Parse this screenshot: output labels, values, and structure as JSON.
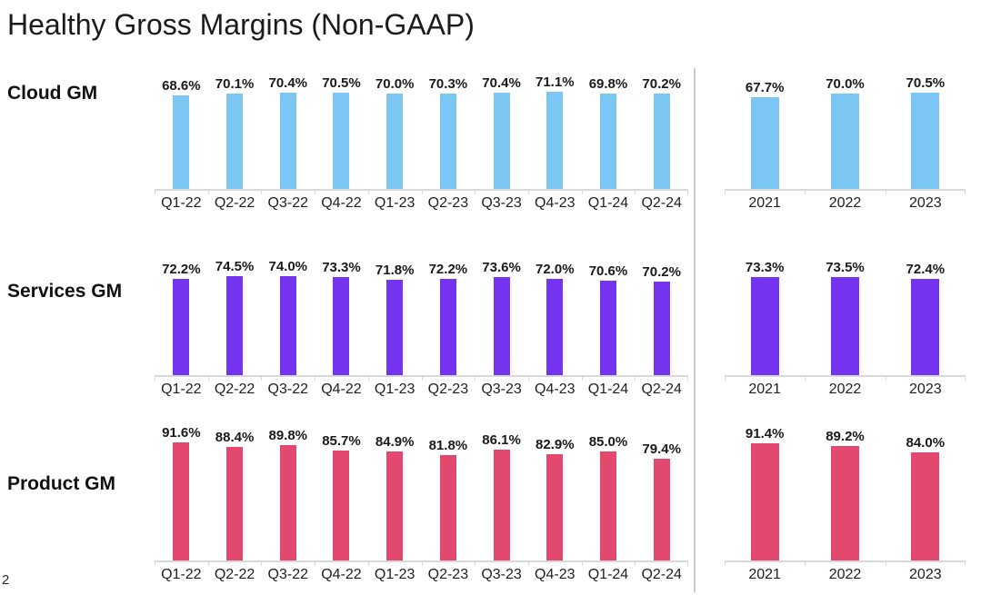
{
  "page": {
    "title": "Healthy Gross Margins (Non-GAAP)",
    "page_number": "2"
  },
  "colors": {
    "cloud_bar": "#7BC6F3",
    "services_bar": "#7433EE",
    "product_bar": "#E3486E",
    "axis": "#D9D9D9",
    "divider": "#C9C9C9",
    "text": "#1A1A1A"
  },
  "chart_data": {
    "type": "bar",
    "title": "Healthy Gross Margins (Non-GAAP)",
    "grid": false,
    "legend": "none",
    "value_labels": "above-bars",
    "rows": [
      {
        "label": "Cloud GM",
        "color": "#7BC6F3",
        "quarterly": {
          "categories": [
            "Q1-22",
            "Q2-22",
            "Q3-22",
            "Q4-22",
            "Q1-23",
            "Q2-23",
            "Q3-23",
            "Q4-23",
            "Q1-24",
            "Q2-24"
          ],
          "values": [
            68.6,
            70.1,
            70.4,
            70.5,
            70.0,
            70.3,
            70.4,
            71.1,
            69.8,
            70.2
          ],
          "labels": [
            "68.6%",
            "70.1%",
            "70.4%",
            "70.5%",
            "70.0%",
            "70.3%",
            "70.4%",
            "71.1%",
            "69.8%",
            "70.2%"
          ],
          "ylim": [
            0,
            90
          ]
        },
        "annual": {
          "categories": [
            "2021",
            "2022",
            "2023"
          ],
          "values": [
            67.7,
            70.0,
            70.5
          ],
          "labels": [
            "67.7%",
            "70.0%",
            "70.5%"
          ],
          "ylim": [
            0,
            90
          ]
        }
      },
      {
        "label": "Services GM",
        "color": "#7433EE",
        "quarterly": {
          "categories": [
            "Q1-22",
            "Q2-22",
            "Q3-22",
            "Q4-22",
            "Q1-23",
            "Q2-23",
            "Q3-23",
            "Q4-23",
            "Q1-24",
            "Q2-24"
          ],
          "values": [
            72.2,
            74.5,
            74.0,
            73.3,
            71.8,
            72.2,
            73.6,
            72.0,
            70.6,
            70.2
          ],
          "labels": [
            "72.2%",
            "74.5%",
            "74.0%",
            "73.3%",
            "71.8%",
            "72.2%",
            "73.6%",
            "72.0%",
            "70.6%",
            "70.2%"
          ],
          "ylim": [
            0,
            92
          ]
        },
        "annual": {
          "categories": [
            "2021",
            "2022",
            "2023"
          ],
          "values": [
            73.3,
            73.5,
            72.4
          ],
          "labels": [
            "73.3%",
            "73.5%",
            "72.4%"
          ],
          "ylim": [
            0,
            92
          ]
        }
      },
      {
        "label": "Product GM",
        "color": "#E3486E",
        "quarterly": {
          "categories": [
            "Q1-22",
            "Q2-22",
            "Q3-22",
            "Q4-22",
            "Q1-23",
            "Q2-23",
            "Q3-23",
            "Q4-23",
            "Q1-24",
            "Q2-24"
          ],
          "values": [
            91.6,
            88.4,
            89.8,
            85.7,
            84.9,
            81.8,
            86.1,
            82.9,
            85.0,
            79.4
          ],
          "labels": [
            "91.6%",
            "88.4%",
            "89.8%",
            "85.7%",
            "84.9%",
            "81.8%",
            "86.1%",
            "82.9%",
            "85.0%",
            "79.4%"
          ],
          "ylim": [
            0,
            113
          ]
        },
        "annual": {
          "categories": [
            "2021",
            "2022",
            "2023"
          ],
          "values": [
            91.4,
            89.2,
            84.0
          ],
          "labels": [
            "91.4%",
            "89.2%",
            "84.0%"
          ],
          "ylim": [
            0,
            113
          ]
        }
      }
    ]
  }
}
